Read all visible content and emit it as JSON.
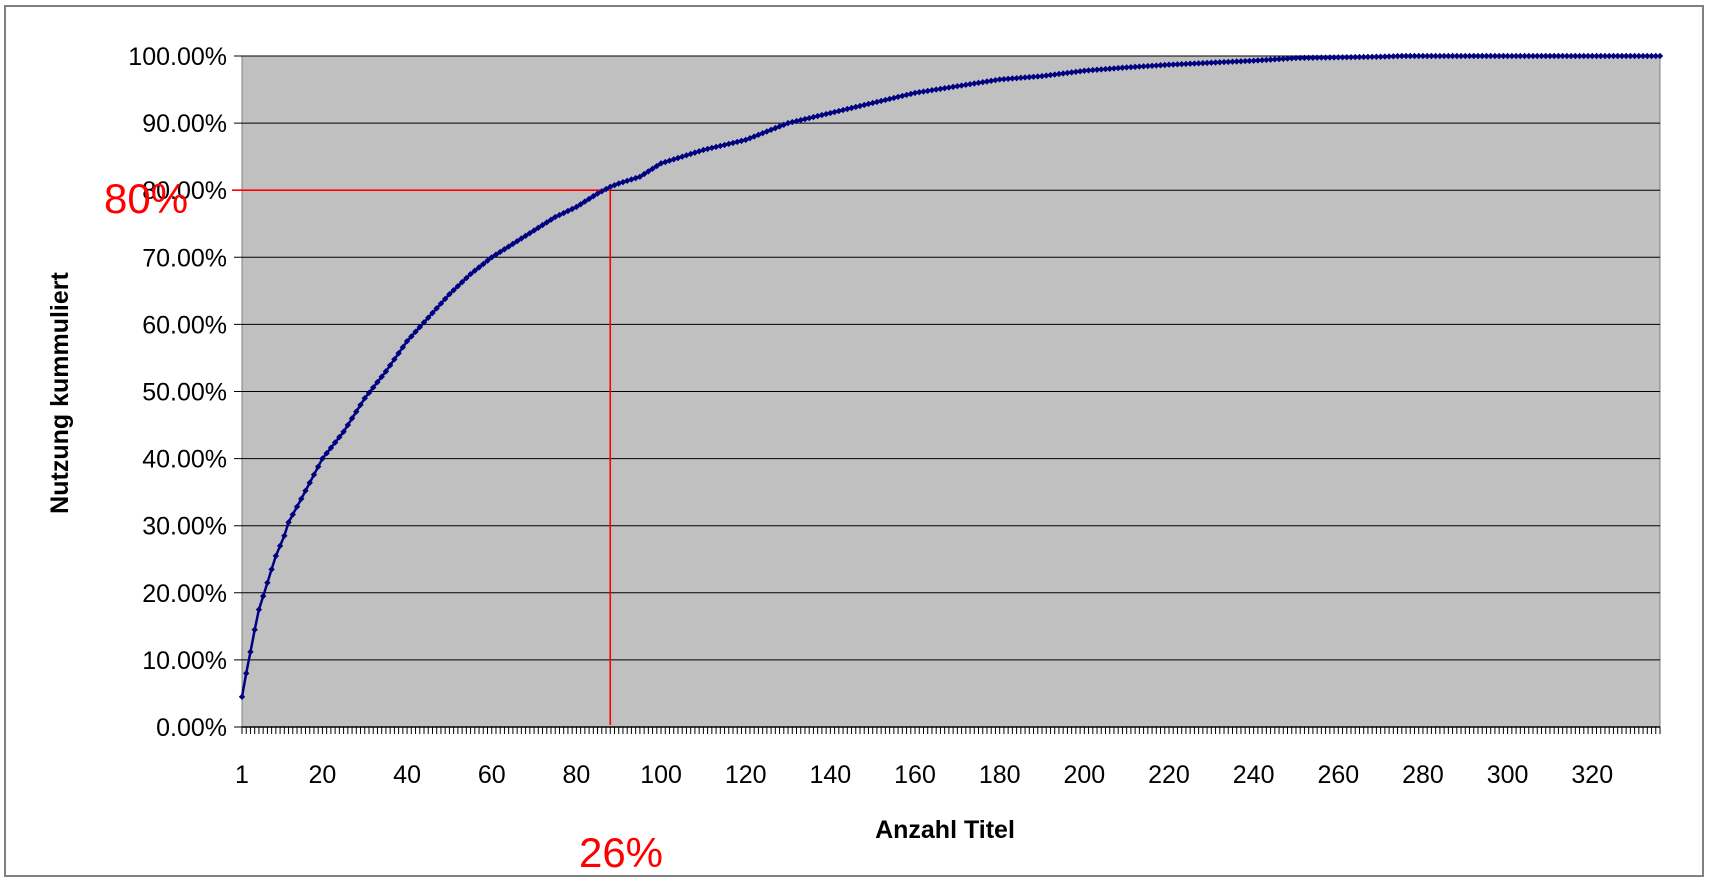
{
  "chart_data": {
    "type": "line",
    "title": "",
    "xlabel": "Anzahl Titel",
    "ylabel": "Nutzung kummuliert",
    "xlim": [
      1,
      336
    ],
    "ylim": [
      0,
      1
    ],
    "x_ticks": [
      "1",
      "20",
      "40",
      "60",
      "80",
      "100",
      "120",
      "140",
      "160",
      "180",
      "200",
      "220",
      "240",
      "260",
      "280",
      "300",
      "320"
    ],
    "y_ticks": [
      "0.00%",
      "10.00%",
      "20.00%",
      "30.00%",
      "40.00%",
      "50.00%",
      "60.00%",
      "70.00%",
      "80.00%",
      "90.00%",
      "100.00%"
    ],
    "grid": true,
    "plot_background": "#c0c0c0",
    "series": [
      {
        "color": "#000080",
        "marker": "diamond",
        "points": [
          [
            1,
            0.045
          ],
          [
            2,
            0.08
          ],
          [
            3,
            0.112
          ],
          [
            4,
            0.145
          ],
          [
            5,
            0.175
          ],
          [
            6,
            0.195
          ],
          [
            7,
            0.215
          ],
          [
            8,
            0.235
          ],
          [
            9,
            0.255
          ],
          [
            10,
            0.27
          ],
          [
            11,
            0.285
          ],
          [
            12,
            0.305
          ],
          [
            15,
            0.34
          ],
          [
            20,
            0.4
          ],
          [
            25,
            0.44
          ],
          [
            30,
            0.49
          ],
          [
            35,
            0.53
          ],
          [
            40,
            0.575
          ],
          [
            45,
            0.61
          ],
          [
            50,
            0.645
          ],
          [
            55,
            0.675
          ],
          [
            60,
            0.7
          ],
          [
            65,
            0.72
          ],
          [
            70,
            0.74
          ],
          [
            75,
            0.76
          ],
          [
            80,
            0.775
          ],
          [
            85,
            0.795
          ],
          [
            88,
            0.805
          ],
          [
            90,
            0.81
          ],
          [
            95,
            0.82
          ],
          [
            100,
            0.84
          ],
          [
            110,
            0.86
          ],
          [
            120,
            0.875
          ],
          [
            130,
            0.9
          ],
          [
            140,
            0.915
          ],
          [
            150,
            0.93
          ],
          [
            160,
            0.945
          ],
          [
            170,
            0.955
          ],
          [
            180,
            0.965
          ],
          [
            190,
            0.97
          ],
          [
            200,
            0.978
          ],
          [
            210,
            0.983
          ],
          [
            220,
            0.987
          ],
          [
            230,
            0.99
          ],
          [
            240,
            0.993
          ],
          [
            250,
            0.997
          ],
          [
            260,
            0.998
          ],
          [
            270,
            0.999
          ],
          [
            275,
            1.0
          ],
          [
            300,
            1.0
          ],
          [
            320,
            1.0
          ],
          [
            336,
            1.0
          ]
        ]
      }
    ],
    "annotations": {
      "y_marker_label": "80%",
      "y_marker_value": 0.8,
      "x_marker_label": "26%",
      "x_marker_value": 88,
      "color": "#ff0000"
    }
  }
}
